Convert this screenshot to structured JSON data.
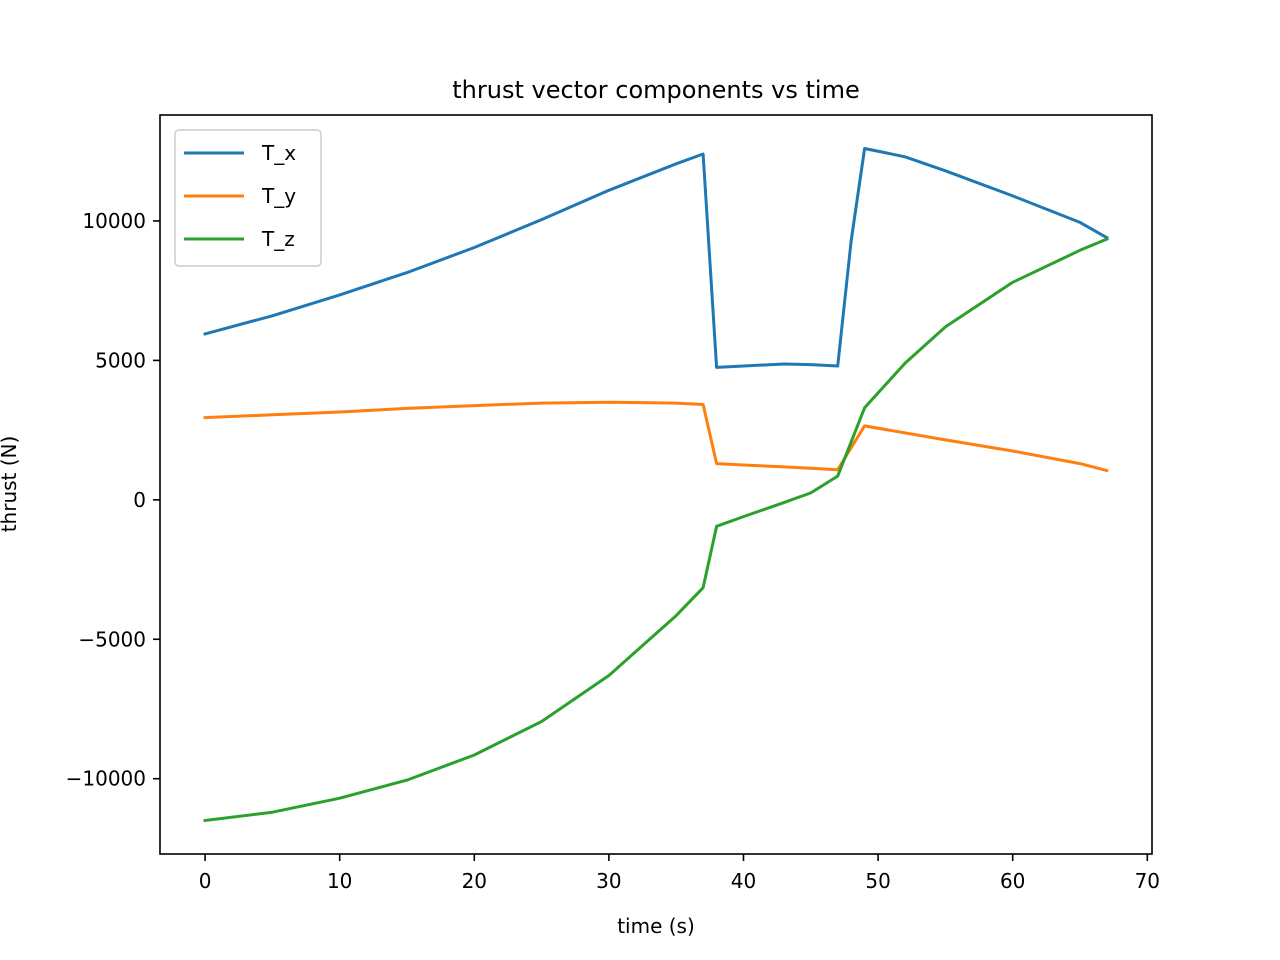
{
  "chart_data": {
    "type": "line",
    "title": "thrust vector components vs time",
    "xlabel": "time (s)",
    "ylabel": "thrust (N)",
    "xlim": [
      -3.35,
      70.35
    ],
    "ylim": [
      -12700,
      13800
    ],
    "xticks": [
      0,
      10,
      20,
      30,
      40,
      50,
      60,
      70
    ],
    "xtick_labels": [
      "0",
      "10",
      "20",
      "30",
      "40",
      "50",
      "60",
      "70"
    ],
    "yticks": [
      -10000,
      -5000,
      0,
      5000,
      10000
    ],
    "ytick_labels": [
      "−10000",
      "−5000",
      "0",
      "5000",
      "10000"
    ],
    "grid": false,
    "legend_position": "top-left",
    "series": [
      {
        "name": "T_x",
        "color": "#1f77b4",
        "x": [
          0,
          5,
          10,
          15,
          20,
          25,
          30,
          35,
          37,
          38,
          40,
          43,
          45,
          47,
          48,
          49,
          52,
          55,
          60,
          65,
          67
        ],
        "y": [
          5950,
          6600,
          7350,
          8150,
          9050,
          10050,
          11100,
          12050,
          12400,
          4750,
          4800,
          4870,
          4850,
          4800,
          9300,
          12600,
          12300,
          11800,
          10900,
          9950,
          9400
        ]
      },
      {
        "name": "T_y",
        "color": "#ff7f0e",
        "x": [
          0,
          5,
          10,
          15,
          20,
          25,
          30,
          35,
          37,
          38,
          40,
          43,
          45,
          47,
          49,
          55,
          60,
          65,
          67
        ],
        "y": [
          2950,
          3050,
          3150,
          3280,
          3380,
          3470,
          3500,
          3470,
          3420,
          1300,
          1250,
          1180,
          1130,
          1080,
          2650,
          2150,
          1750,
          1300,
          1050
        ]
      },
      {
        "name": "T_z",
        "color": "#2ca02c",
        "x": [
          0,
          5,
          10,
          15,
          20,
          25,
          30,
          35,
          37,
          38,
          40,
          43,
          45,
          47,
          49,
          52,
          55,
          60,
          65,
          67
        ],
        "y": [
          -11500,
          -11200,
          -10700,
          -10050,
          -9150,
          -7950,
          -6300,
          -4150,
          -3150,
          -950,
          -600,
          -100,
          250,
          850,
          3300,
          4900,
          6200,
          7800,
          8950,
          9350
        ]
      }
    ]
  }
}
